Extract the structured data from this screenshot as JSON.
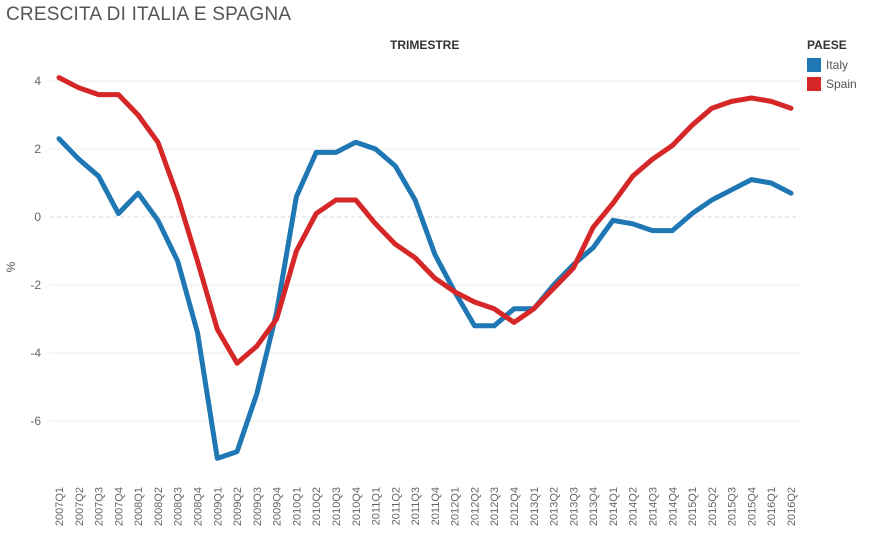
{
  "chart_data": {
    "type": "line",
    "title": "CRESCITA DI ITALIA E SPAGNA",
    "top_axis_title": "TRIMESTRE",
    "xlabel": "",
    "ylabel": "%",
    "ylim": [
      -7.6,
      4.6
    ],
    "yticks": [
      4,
      2,
      0,
      -2,
      -4,
      -6
    ],
    "ytick_labels": [
      "4",
      "2",
      "0",
      "-2",
      "-4",
      "-6"
    ],
    "grid": true,
    "legend_title": "PAESE",
    "legend_position": "top-right",
    "categories": [
      "2007Q1",
      "2007Q2",
      "2007Q3",
      "2007Q4",
      "2008Q1",
      "2008Q2",
      "2008Q3",
      "2008Q4",
      "2009Q1",
      "2009Q2",
      "2009Q3",
      "2009Q4",
      "2010Q1",
      "2010Q2",
      "2010Q3",
      "2010Q4",
      "2011Q1",
      "2011Q2",
      "2011Q3",
      "2011Q4",
      "2012Q1",
      "2012Q2",
      "2012Q3",
      "2012Q4",
      "2013Q1",
      "2013Q2",
      "2013Q3",
      "2013Q4",
      "2014Q1",
      "2014Q2",
      "2014Q3",
      "2014Q4",
      "2015Q1",
      "2015Q2",
      "2015Q3",
      "2015Q4",
      "2016Q1",
      "2016Q2"
    ],
    "series": [
      {
        "name": "Italy",
        "color": "#1f77b4",
        "values": [
          2.3,
          1.7,
          1.2,
          0.1,
          0.7,
          -0.1,
          -1.3,
          -3.4,
          -7.1,
          -6.9,
          -5.2,
          -2.8,
          0.6,
          1.9,
          1.9,
          2.2,
          2.0,
          1.5,
          0.5,
          -1.1,
          -2.2,
          -3.2,
          -3.2,
          -2.7,
          -2.7,
          -2.0,
          -1.4,
          -0.9,
          -0.1,
          -0.2,
          -0.4,
          -0.4,
          0.1,
          0.5,
          0.8,
          1.1,
          1.0,
          0.7
        ]
      },
      {
        "name": "Spain",
        "color": "#d62728",
        "values": [
          4.1,
          3.8,
          3.6,
          3.6,
          3.0,
          2.2,
          0.6,
          -1.3,
          -3.3,
          -4.3,
          -3.8,
          -3.0,
          -1.0,
          0.1,
          0.5,
          0.5,
          -0.2,
          -0.8,
          -1.2,
          -1.8,
          -2.2,
          -2.5,
          -2.7,
          -3.1,
          -2.7,
          -2.1,
          -1.5,
          -0.3,
          0.4,
          1.2,
          1.7,
          2.1,
          2.7,
          3.2,
          3.4,
          3.5,
          3.4,
          3.2
        ]
      }
    ]
  }
}
